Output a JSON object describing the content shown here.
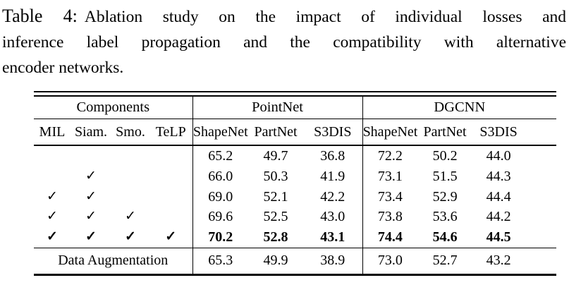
{
  "caption": {
    "label": "Table 4:",
    "line1": "Ablation study on the impact of individual losses and",
    "line2": "inference label propagation and the compatibility with alternative",
    "line3": "encoder networks."
  },
  "table": {
    "group_headers": {
      "components": "Components",
      "pointnet": "PointNet",
      "dgcnn": "DGCNN"
    },
    "sub_headers": {
      "components": [
        "MIL",
        "Siam.",
        "Smo.",
        "TeLP"
      ],
      "pointnet": [
        "ShapeNet",
        "PartNet",
        "S3DIS"
      ],
      "dgcnn": [
        "ShapeNet",
        "PartNet",
        "S3DIS"
      ]
    },
    "rows": [
      {
        "checks": [
          "",
          "",
          "",
          ""
        ],
        "values": [
          "65.2",
          "49.7",
          "36.8",
          "72.2",
          "50.2",
          "44.0"
        ]
      },
      {
        "checks": [
          "",
          "✓",
          "",
          ""
        ],
        "values": [
          "66.0",
          "50.3",
          "41.9",
          "73.1",
          "51.5",
          "44.3"
        ]
      },
      {
        "checks": [
          "✓",
          "✓",
          "",
          ""
        ],
        "values": [
          "69.0",
          "52.1",
          "42.2",
          "73.4",
          "52.9",
          "44.4"
        ]
      },
      {
        "checks": [
          "✓",
          "✓",
          "✓",
          ""
        ],
        "values": [
          "69.6",
          "52.5",
          "43.0",
          "73.8",
          "53.6",
          "44.2"
        ]
      },
      {
        "checks": [
          "✓",
          "✓",
          "✓",
          "✓"
        ],
        "values": [
          "70.2",
          "52.8",
          "43.1",
          "74.4",
          "54.6",
          "44.5"
        ]
      }
    ],
    "footer": {
      "label": "Data Augmentation",
      "values": [
        "65.3",
        "49.9",
        "38.9",
        "73.0",
        "52.7",
        "43.2"
      ]
    },
    "text_color": "#000000",
    "background_color": "#ffffff"
  }
}
